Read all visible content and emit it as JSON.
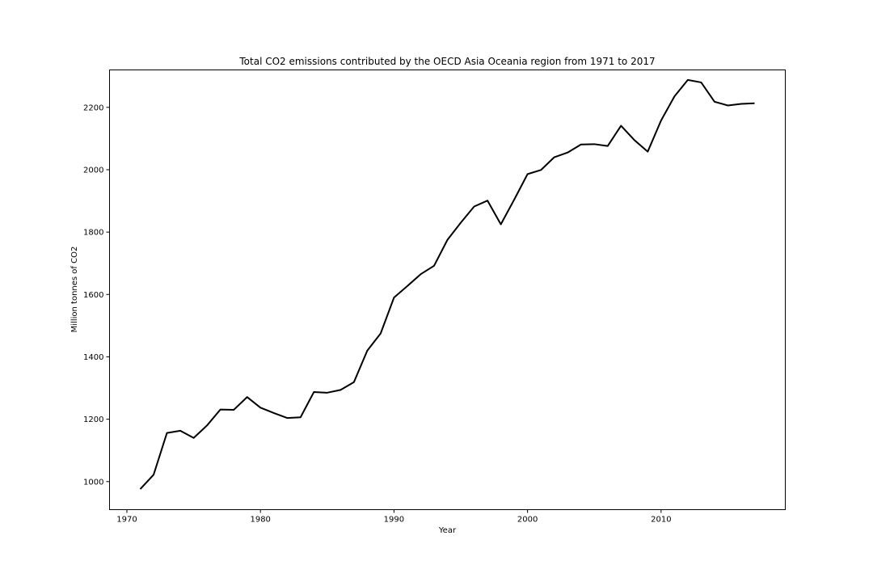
{
  "chart_data": {
    "type": "line",
    "title": "Total CO2 emissions contributed by the OECD Asia Oceania region from 1971 to 2017",
    "xlabel": "Year",
    "ylabel": "Million tonnes of CO2",
    "xlim": [
      1968.7,
      2019.3
    ],
    "ylim": [
      910,
      2320
    ],
    "xticks": [
      1970,
      1980,
      1990,
      2000,
      2010
    ],
    "yticks": [
      1000,
      1200,
      1400,
      1600,
      1800,
      2000,
      2200
    ],
    "grid": false,
    "line_color": "#000000",
    "x": [
      1971,
      1972,
      1973,
      1974,
      1975,
      1976,
      1977,
      1978,
      1979,
      1980,
      1981,
      1982,
      1983,
      1984,
      1985,
      1986,
      1987,
      1988,
      1989,
      1990,
      1991,
      1992,
      1993,
      1994,
      1995,
      1996,
      1997,
      1998,
      1999,
      2000,
      2001,
      2002,
      2003,
      2004,
      2005,
      2006,
      2007,
      2008,
      2009,
      2010,
      2011,
      2012,
      2013,
      2014,
      2015,
      2016,
      2017
    ],
    "series": [
      {
        "values": [
          976,
          1022,
          1156,
          1163,
          1140,
          1180,
          1231,
          1230,
          1271,
          1237,
          1220,
          1204,
          1206,
          1287,
          1285,
          1294,
          1319,
          1420,
          1475,
          1590,
          1627,
          1665,
          1692,
          1775,
          1830,
          1882,
          1901,
          1825,
          1904,
          1986,
          1999,
          2040,
          2055,
          2081,
          2082,
          2076,
          2141,
          2095,
          2058,
          2158,
          2235,
          2288,
          2280,
          2218,
          2206,
          2211,
          2213
        ]
      }
    ]
  }
}
